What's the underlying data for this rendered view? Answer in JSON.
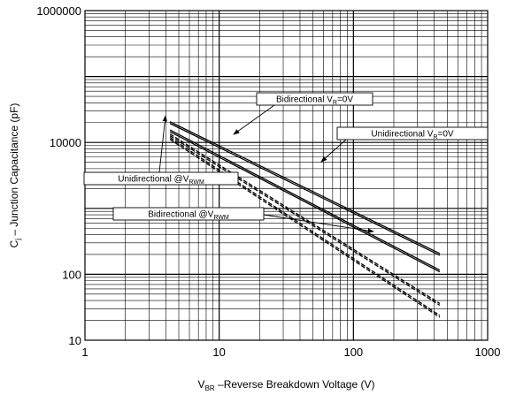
{
  "chart_data": {
    "type": "line",
    "x_scale": "log",
    "y_scale": "log",
    "xlim": [
      1,
      1000
    ],
    "ylim": [
      10,
      1000000
    ],
    "grid": true,
    "x_ticks": [
      "1",
      "10",
      "100",
      "1000"
    ],
    "y_ticks": [
      "10",
      "100",
      "10000",
      "1000000"
    ],
    "xlabel": {
      "main": "V",
      "sub": "BR",
      "rest": " –Reverse Breakdown Voltage  (V)"
    },
    "ylabel": {
      "main": "C",
      "sub": "j",
      "rest": " – Junction Capacitance  (pF)"
    },
    "series": [
      {
        "name": "Bidirectional VR=0V",
        "label_parts": {
          "main": "Bidirectional V",
          "sub": "R",
          "rest": "=0V"
        },
        "style": "solid",
        "color": "#000000",
        "x": [
          4.3,
          440
        ],
        "y": [
          20000,
          200
        ]
      },
      {
        "name": "Unidirectional VR=0V",
        "label_parts": {
          "main": "Unidirectional V",
          "sub": "R",
          "rest": "=0V"
        },
        "style": "solid",
        "color": "#000000",
        "x": [
          4.3,
          440
        ],
        "y": [
          15000,
          112
        ]
      },
      {
        "name": "Unidirectional @VRWM",
        "label_parts": {
          "main": "Unidirectional @V",
          "sub": "RWM",
          "rest": ""
        },
        "style": "dashed",
        "color": "#000000",
        "x": [
          4.3,
          440
        ],
        "y": [
          13000,
          35
        ]
      },
      {
        "name": "Bidirectional @VRWM",
        "label_parts": {
          "main": "Bidirectional      @V",
          "sub": "RWM",
          "rest": ""
        },
        "style": "dashed",
        "color": "#000000",
        "x": [
          4.3,
          440
        ],
        "y": [
          11500,
          23
        ]
      }
    ]
  }
}
